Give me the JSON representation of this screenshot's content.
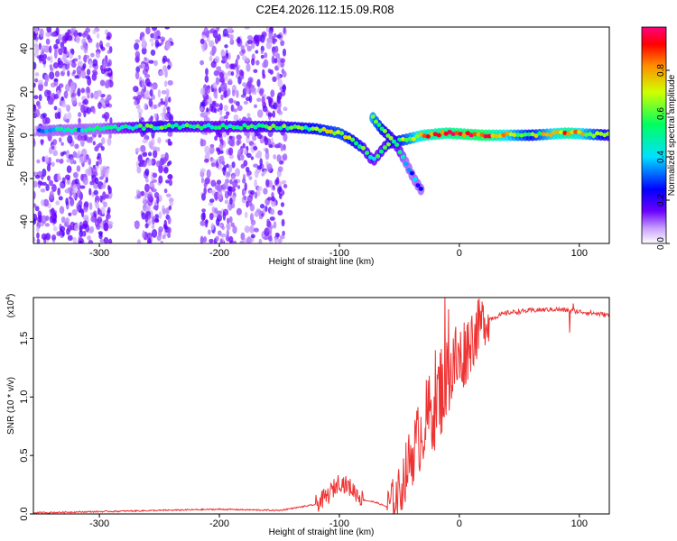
{
  "title": "C2E4.2026.112.15.09.R08",
  "chart_data": [
    {
      "type": "heatmap",
      "name": "spectrogram",
      "xlabel": "Height of straight line (km)",
      "ylabel": "Frequency (Hz)",
      "xlim": [
        -355,
        125
      ],
      "ylim": [
        -50,
        50
      ],
      "xticks": [
        -300,
        -200,
        -100,
        0,
        100
      ],
      "yticks": [
        -40,
        -20,
        0,
        20,
        40
      ],
      "colorbar": {
        "label": "Normalized spectral amplitude",
        "range": [
          0,
          1
        ],
        "ticks": [
          "0.0",
          "0.2",
          "0.4",
          "0.6",
          "0.8"
        ]
      },
      "ridge": [
        {
          "x": -350,
          "f": 2,
          "a": 0.35
        },
        {
          "x": -300,
          "f": 3,
          "a": 0.45
        },
        {
          "x": -250,
          "f": 4,
          "a": 0.55
        },
        {
          "x": -200,
          "f": 4,
          "a": 0.5
        },
        {
          "x": -150,
          "f": 4,
          "a": 0.55
        },
        {
          "x": -120,
          "f": 3,
          "a": 0.6
        },
        {
          "x": -100,
          "f": 1,
          "a": 0.65
        },
        {
          "x": -90,
          "f": -2,
          "a": 0.6
        },
        {
          "x": -80,
          "f": -6,
          "a": 0.55
        },
        {
          "x": -72,
          "f": -12,
          "a": 0.5
        },
        {
          "x": -60,
          "f": -4,
          "a": 0.55
        },
        {
          "x": -45,
          "f": -2,
          "a": 0.65
        },
        {
          "x": -30,
          "f": 0,
          "a": 0.8
        },
        {
          "x": -10,
          "f": 1,
          "a": 0.85
        },
        {
          "x": 20,
          "f": 0,
          "a": 0.9
        },
        {
          "x": 60,
          "f": 0,
          "a": 0.6
        },
        {
          "x": 90,
          "f": 1,
          "a": 0.85
        },
        {
          "x": 125,
          "f": 0,
          "a": 0.55
        }
      ],
      "branch": [
        {
          "x": -72,
          "f": 8,
          "a": 0.7
        },
        {
          "x": -65,
          "f": 3,
          "a": 0.6
        },
        {
          "x": -55,
          "f": -2,
          "a": 0.55
        },
        {
          "x": -45,
          "f": -12,
          "a": 0.45
        },
        {
          "x": -38,
          "f": -20,
          "a": 0.35
        },
        {
          "x": -32,
          "f": -25,
          "a": 0.2
        }
      ],
      "noise_bands": [
        [
          -355,
          -290
        ],
        [
          -270,
          -240
        ],
        [
          -215,
          -145
        ]
      ]
    },
    {
      "type": "line",
      "name": "snr",
      "xlabel": "Height of straight line (km)",
      "ylabel": "SNR (10 * v/v)",
      "yscale_label": "(x10",
      "yscale_exp": "4",
      "xlim": [
        -355,
        125
      ],
      "ylim": [
        0,
        1.85
      ],
      "xticks": [
        -300,
        -200,
        -100,
        0,
        100
      ],
      "ytick_labels": [
        "0.0",
        "0.5",
        "1.0",
        "1.5"
      ],
      "ytick_values": [
        0,
        0.5,
        1.0,
        1.5
      ],
      "color": "#ee3333",
      "x": [
        -355,
        -300,
        -250,
        -200,
        -150,
        -120,
        -110,
        -100,
        -90,
        -80,
        -70,
        -60,
        -50,
        -45,
        -40,
        -35,
        -30,
        -25,
        -20,
        -15,
        -10,
        -5,
        0,
        5,
        10,
        20,
        40,
        60,
        80,
        100,
        125
      ],
      "y": [
        0.01,
        0.02,
        0.03,
        0.04,
        0.03,
        0.08,
        0.15,
        0.28,
        0.22,
        0.12,
        0.1,
        0.06,
        0.18,
        0.35,
        0.5,
        0.62,
        0.75,
        0.85,
        0.95,
        1.08,
        1.15,
        1.25,
        1.3,
        1.4,
        1.5,
        1.65,
        1.72,
        1.74,
        1.75,
        1.73,
        1.7
      ],
      "spikes": [
        [
          -12,
          1.88
        ],
        [
          -9,
          1.75
        ],
        [
          -20,
          1.4
        ],
        [
          -3,
          1.6
        ],
        [
          95,
          1.8
        ],
        [
          92,
          1.55
        ]
      ]
    }
  ]
}
